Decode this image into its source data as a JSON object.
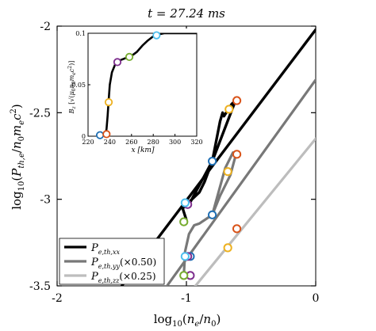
{
  "title": "t = 27.24 ms",
  "chart_data": [
    {
      "type": "line",
      "title": "t = 27.24 ms",
      "xlabel": "log10(n_e/n_0)",
      "ylabel": "log10(P_th,e/n_0 m_e c^2)",
      "xlim": [
        -2,
        0
      ],
      "ylim": [
        -3.5,
        -2
      ],
      "xticks": [
        -2,
        -1,
        0
      ],
      "yticks": [
        -3.5,
        -3,
        -2.5,
        -2
      ],
      "xtick_labels": [
        "-2",
        "-1",
        "0"
      ],
      "ytick_labels": [
        "-3.5",
        "-3",
        "-2.5",
        "-2"
      ],
      "grid": false,
      "legend": "bottom-left",
      "series": [
        {
          "name": "P_e,th,xx",
          "label": "P",
          "sub": "e,th,xx",
          "suffix": "",
          "color": "#000000",
          "reference_line": [
            [
              -1.5,
              -3.5
            ],
            [
              0,
              -2.02
            ]
          ],
          "x": [
            -1.0,
            -1.03,
            -0.98,
            -0.8,
            -0.74,
            -0.72,
            -0.71,
            -0.65,
            -0.62,
            -0.8,
            -0.86,
            -0.9,
            -1.0
          ],
          "y": [
            -3.12,
            -3.05,
            -3.03,
            -2.78,
            -2.55,
            -2.5,
            -2.52,
            -2.45,
            -2.43,
            -2.78,
            -2.9,
            -2.96,
            -3.03
          ]
        },
        {
          "name": "P_e,th,yy (x0.50)",
          "label": "P",
          "sub": "e,th,yy",
          "suffix": "(×0.50)",
          "color": "#787878",
          "reference_line": [
            [
              -1.15,
              -3.5
            ],
            [
              0,
              -2.31
            ]
          ],
          "x": [
            -1.02,
            -1.01,
            -0.98,
            -0.94,
            -0.9,
            -0.86,
            -0.8,
            -0.74,
            -0.7,
            -0.66,
            -0.62,
            -0.61,
            -0.64,
            -0.7,
            -0.8
          ],
          "y": [
            -3.44,
            -3.3,
            -3.2,
            -3.15,
            -3.14,
            -3.12,
            -3.09,
            -2.98,
            -2.92,
            -2.86,
            -2.75,
            -2.73,
            -2.73,
            -2.82,
            -3.09
          ]
        },
        {
          "name": "P_e,th,zz (x0.25)",
          "label": "P",
          "sub": "e,th,zz",
          "suffix": "(×0.25)",
          "color": "#bdbdbd",
          "reference_line": [
            [
              -0.93,
              -3.5
            ],
            [
              0,
              -2.65
            ]
          ],
          "x": [],
          "y": []
        }
      ],
      "markers": [
        {
          "color": "#1f6fb4",
          "points": [
            [
              -0.8,
              -2.78
            ],
            [
              -0.8,
              -3.09
            ],
            [
              -0.97,
              -3.33
            ]
          ]
        },
        {
          "color": "#d95319",
          "points": [
            [
              -0.61,
              -2.43
            ],
            [
              -0.61,
              -2.74
            ],
            [
              -0.61,
              -3.17
            ]
          ]
        },
        {
          "color": "#edb120",
          "points": [
            [
              -0.67,
              -2.48
            ],
            [
              -0.68,
              -2.84
            ],
            [
              -0.68,
              -3.28
            ]
          ]
        },
        {
          "color": "#7e2f8e",
          "points": [
            [
              -0.99,
              -3.03
            ],
            [
              -0.99,
              -3.33
            ],
            [
              -0.97,
              -3.44
            ]
          ]
        },
        {
          "color": "#77ac30",
          "points": [
            [
              -1.02,
              -3.13
            ],
            [
              -1.02,
              -3.44
            ],
            [
              -0.96,
              -3.54
            ]
          ]
        },
        {
          "color": "#4dbeee",
          "points": [
            [
              -1.01,
              -3.02
            ],
            [
              -1.01,
              -3.33
            ],
            [
              -0.97,
              -3.7
            ]
          ]
        }
      ]
    },
    {
      "type": "line",
      "xlabel": "x [km]",
      "ylabel": "B_z [√(μ0 n0 me c²)]",
      "xlim": [
        220,
        320
      ],
      "ylim": [
        0,
        0.1
      ],
      "xticks": [
        220,
        240,
        260,
        280,
        300,
        320
      ],
      "yticks": [
        0,
        0.05,
        0.1
      ],
      "xtick_labels": [
        "220",
        "240",
        "260",
        "280",
        "300",
        "320"
      ],
      "ytick_labels": [
        "0",
        "0.05",
        "0.1"
      ],
      "x": [
        230,
        233,
        236,
        237,
        238,
        239,
        240,
        242,
        245,
        250,
        255,
        260,
        265,
        270,
        275,
        280,
        285,
        290,
        300,
        310,
        320
      ],
      "y": [
        0.0,
        0.0005,
        0.002,
        0.007,
        0.02,
        0.035,
        0.05,
        0.062,
        0.07,
        0.074,
        0.076,
        0.078,
        0.082,
        0.088,
        0.093,
        0.097,
        0.099,
        0.1,
        0.1,
        0.1,
        0.1
      ],
      "markers": [
        {
          "color": "#1f6fb4",
          "x": 231,
          "y": 0.001
        },
        {
          "color": "#d95319",
          "x": 237,
          "y": 0.002
        },
        {
          "color": "#edb120",
          "x": 239,
          "y": 0.033
        },
        {
          "color": "#7e2f8e",
          "x": 247,
          "y": 0.072
        },
        {
          "color": "#77ac30",
          "x": 258,
          "y": 0.077
        },
        {
          "color": "#4dbeee",
          "x": 283,
          "y": 0.098
        }
      ]
    }
  ]
}
